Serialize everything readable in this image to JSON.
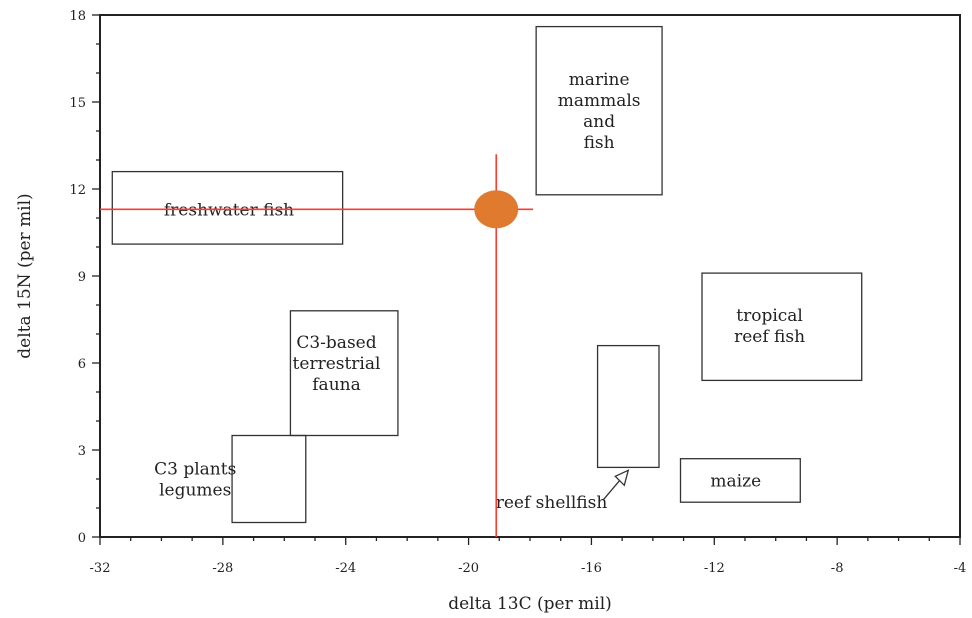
{
  "chart_data": {
    "type": "scatter",
    "title": "",
    "xlabel": "delta 13C (per mil)",
    "ylabel": "delta 15N (per mil)",
    "xlim": [
      -32,
      -4
    ],
    "ylim": [
      0,
      18
    ],
    "x_ticks": [
      -32,
      -28,
      -24,
      -20,
      -16,
      -12,
      -8,
      -4
    ],
    "x_tick_labels": [
      "-32",
      "-28",
      "-24",
      "-20",
      "-16",
      "-12",
      "-8",
      "-4"
    ],
    "y_ticks": [
      0,
      3,
      6,
      9,
      12,
      15,
      18
    ],
    "y_tick_labels": [
      "0",
      "3",
      "6",
      "9",
      "12",
      "15",
      "18"
    ],
    "grid": false,
    "regions": [
      {
        "id": "freshwater-fish",
        "label_lines": [
          "freshwater fish"
        ],
        "x": [
          -31.6,
          -24.1
        ],
        "y": [
          10.1,
          12.6
        ]
      },
      {
        "id": "marine-mammals-fish",
        "label_lines": [
          "marine",
          "mammals",
          "and",
          "fish"
        ],
        "x": [
          -17.8,
          -13.7
        ],
        "y": [
          11.8,
          17.6
        ]
      },
      {
        "id": "tropical-reef-fish",
        "label_lines": [
          "tropical",
          "reef fish"
        ],
        "x": [
          -12.4,
          -7.2
        ],
        "y": [
          5.4,
          9.1
        ]
      },
      {
        "id": "c3-terrestrial-fauna",
        "label_lines": [
          "C3-based",
          "terrestrial",
          "fauna"
        ],
        "x": [
          -25.8,
          -22.3
        ],
        "y": [
          3.5,
          7.8
        ]
      },
      {
        "id": "c3-plants-legumes",
        "label_lines": [
          "C3 plants",
          "legumes"
        ],
        "x": [
          -27.7,
          -25.3
        ],
        "y": [
          0.5,
          3.5
        ]
      },
      {
        "id": "reef-shellfish",
        "label_lines": [
          "reef shellfish"
        ],
        "x": [
          -15.8,
          -13.8
        ],
        "y": [
          2.4,
          6.6
        ]
      },
      {
        "id": "maize",
        "label_lines": [
          "maize"
        ],
        "x": [
          -13.1,
          -9.2
        ],
        "y": [
          1.2,
          2.7
        ]
      }
    ],
    "point": {
      "x": -19.1,
      "y": 11.3,
      "color": "#e07a2e"
    },
    "crosshair": {
      "x": -19.1,
      "y": 11.3,
      "x_range": [
        -32,
        -17.9
      ],
      "y_range": [
        0,
        13.2
      ],
      "color": "#ff3b30"
    },
    "box_color": "#333333"
  }
}
